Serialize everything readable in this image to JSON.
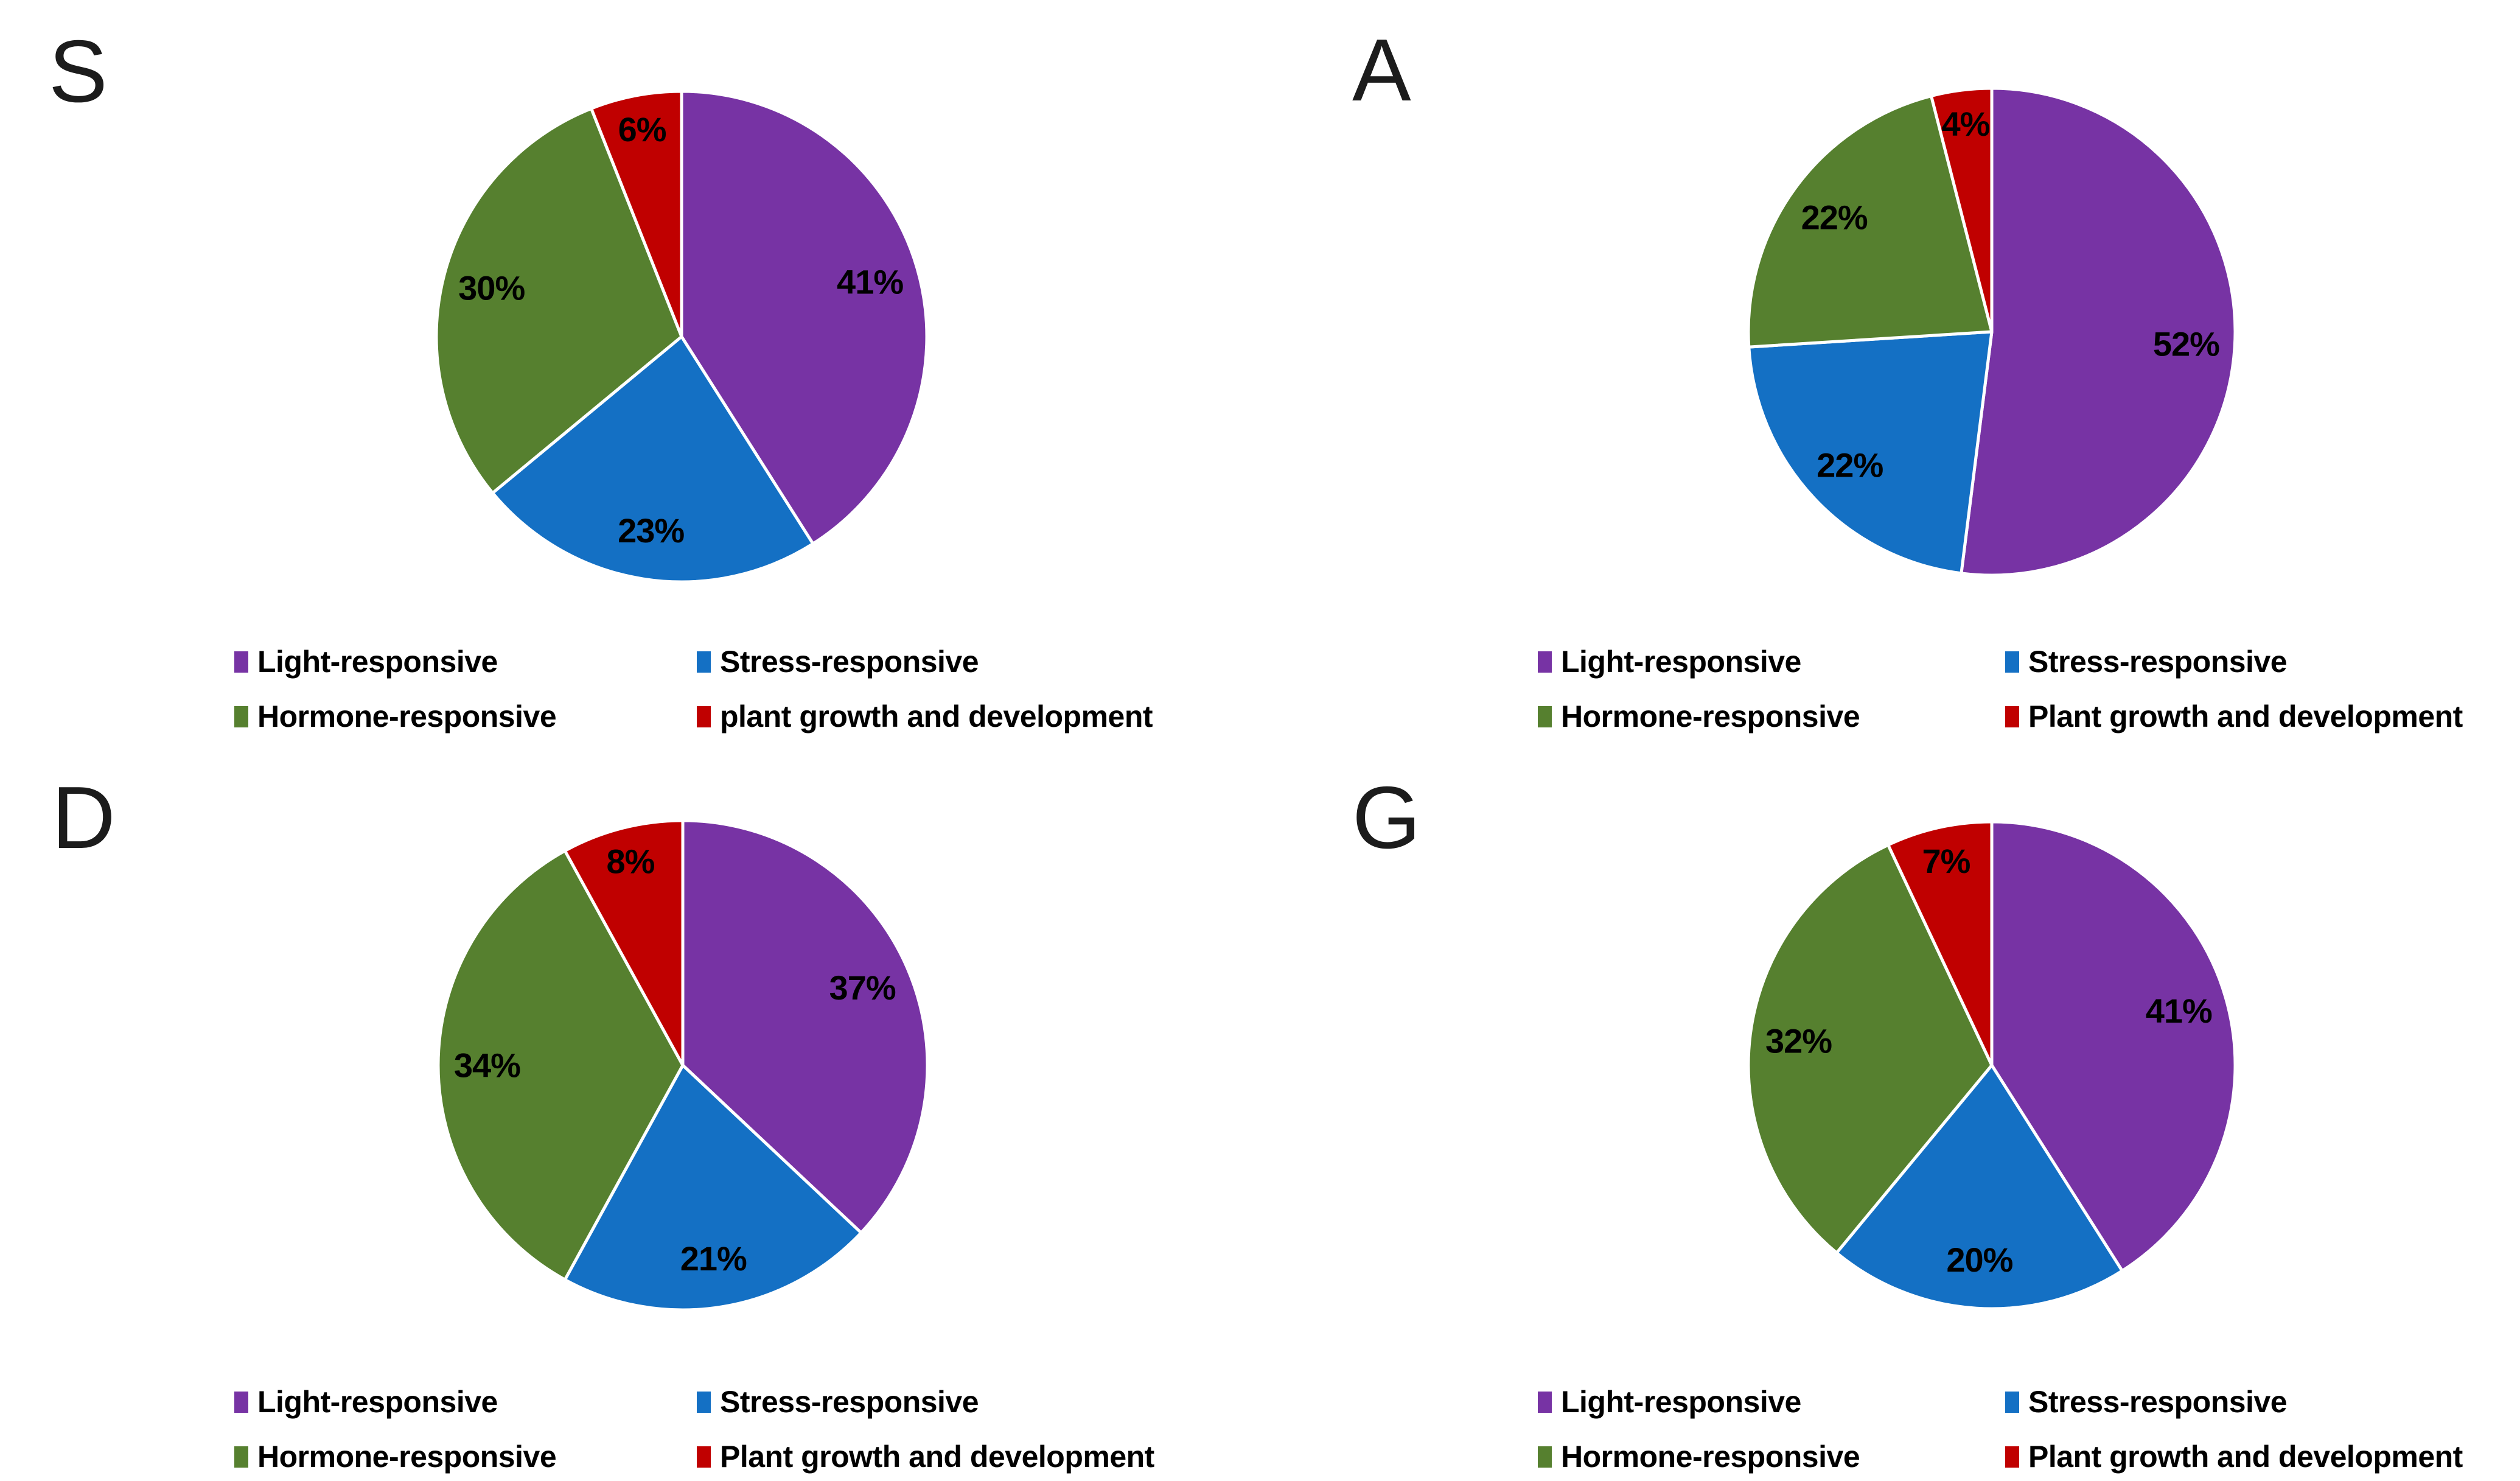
{
  "figure": {
    "background_color": "#FFFFFF",
    "description": "Four pie charts (panels S, A, D, G) of cis-element functional categories, each with a two-column legend below"
  },
  "colors": {
    "light_responsive": "#7733A4",
    "stress_responsive": "#1470C4",
    "hormone_responsive": "#56802F",
    "plant_growth": "#C00000",
    "slice_border": "#FFFFFF",
    "text": "#000000",
    "panel_letter": "#1C1C1C"
  },
  "chart_data": [
    {
      "type": "pie",
      "panel_letter": "S",
      "categories": [
        "Light-responsive",
        "Stress-responsive",
        "Hormone-responsive",
        "plant growth and development"
      ],
      "values": [
        41,
        23,
        30,
        6
      ],
      "data_labels": [
        "41%",
        "23%",
        "30%",
        "6%"
      ],
      "colors": [
        "#7733A4",
        "#1470C4",
        "#56802F",
        "#C00000"
      ],
      "start_angle_deg": 0,
      "direction": "clockwise",
      "legend_position": "bottom, 2 columns"
    },
    {
      "type": "pie",
      "panel_letter": "A",
      "categories": [
        "Light-responsive",
        "Stress-responsive",
        "Hormone-responsive",
        "Plant growth and development"
      ],
      "values": [
        52,
        22,
        22,
        4
      ],
      "data_labels": [
        "52%",
        "22%",
        "22%",
        "4%"
      ],
      "colors": [
        "#7733A4",
        "#1470C4",
        "#56802F",
        "#C00000"
      ],
      "start_angle_deg": 0,
      "direction": "clockwise",
      "legend_position": "bottom, 2 columns"
    },
    {
      "type": "pie",
      "panel_letter": "D",
      "categories": [
        "Light-responsive",
        "Stress-responsive",
        "Hormone-responsive",
        "Plant growth and development"
      ],
      "values": [
        37,
        21,
        34,
        8
      ],
      "data_labels": [
        "37%",
        "21%",
        "34%",
        "8%"
      ],
      "colors": [
        "#7733A4",
        "#1470C4",
        "#56802F",
        "#C00000"
      ],
      "start_angle_deg": 0,
      "direction": "clockwise",
      "legend_position": "bottom, 2 columns"
    },
    {
      "type": "pie",
      "panel_letter": "G",
      "categories": [
        "Light-responsive",
        "Stress-responsive",
        "Hormone-responsive",
        "Plant growth and development"
      ],
      "values": [
        41,
        20,
        32,
        7
      ],
      "data_labels": [
        "41%",
        "20%",
        "32%",
        "7%"
      ],
      "colors": [
        "#7733A4",
        "#1470C4",
        "#56802F",
        "#C00000"
      ],
      "start_angle_deg": 0,
      "direction": "clockwise",
      "legend_position": "bottom, 2 columns"
    }
  ]
}
